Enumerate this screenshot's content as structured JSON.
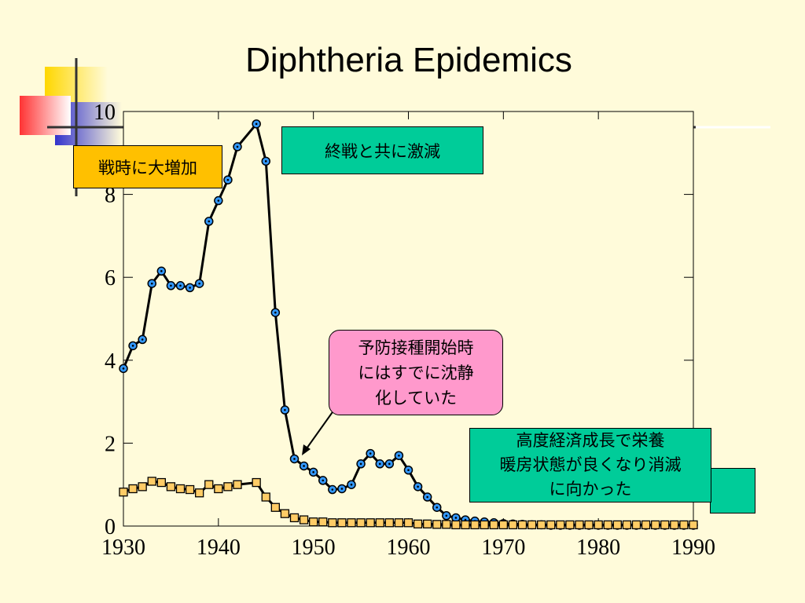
{
  "title": "Diphtheria Epidemics",
  "callouts": {
    "wartime_increase": "戦時に大増加",
    "postwar_decrease": "終戦と共に激減",
    "vaccination": [
      "予防接種開始時",
      "にはすでに沈静",
      "化していた"
    ],
    "growth": [
      "高度経済成長で栄養",
      "暖房状態が良くなり消滅",
      "に向かった"
    ]
  },
  "colors": {
    "background": "#FFFBDA",
    "series1_marker": "#3399FF",
    "series2_marker": "#FFCC66",
    "callout_orange": "#FFC000",
    "callout_green": "#00CC99",
    "callout_pink": "#FF99CC"
  },
  "chart_data": {
    "type": "line",
    "title": "Diphtheria Epidemics",
    "xlim": [
      1930,
      1990
    ],
    "ylim": [
      0,
      10
    ],
    "x_ticks": [
      "1930",
      "1940",
      "1950",
      "1960",
      "1970",
      "1980",
      "1990"
    ],
    "y_ticks": [
      "0",
      "2",
      "4",
      "6",
      "8",
      "10"
    ],
    "grid": false,
    "series": [
      {
        "marker": "circle",
        "x": [
          1930,
          1931,
          1932,
          1933,
          1934,
          1935,
          1936,
          1937,
          1938,
          1939,
          1940,
          1941,
          1942,
          1944,
          1945,
          1946,
          1947,
          1948,
          1949,
          1950,
          1951,
          1952,
          1953,
          1954,
          1955,
          1956,
          1957,
          1958,
          1959,
          1960,
          1961,
          1962,
          1963,
          1964,
          1965,
          1966,
          1967,
          1968,
          1969,
          1970,
          1971,
          1972,
          1973,
          1974,
          1975,
          1976,
          1977,
          1978,
          1979,
          1980,
          1981,
          1982,
          1983,
          1984,
          1985,
          1986,
          1987,
          1988,
          1989,
          1990
        ],
        "y": [
          3.8,
          4.35,
          4.5,
          5.85,
          6.15,
          5.8,
          5.8,
          5.75,
          5.85,
          7.35,
          7.85,
          8.35,
          9.15,
          9.7,
          8.8,
          5.15,
          2.8,
          1.62,
          1.45,
          1.3,
          1.1,
          0.88,
          0.9,
          1.0,
          1.5,
          1.75,
          1.5,
          1.5,
          1.7,
          1.35,
          0.95,
          0.7,
          0.45,
          0.25,
          0.2,
          0.15,
          0.12,
          0.1,
          0.08,
          0.06,
          0.05,
          0.04,
          0.03,
          0.03,
          0.02,
          0.02,
          0.02,
          0.02,
          0.02,
          0.02,
          0.02,
          0.02,
          0.02,
          0.02,
          0.02,
          0.02,
          0.02,
          0.02,
          0.02,
          0.02
        ]
      },
      {
        "marker": "square",
        "x": [
          1930,
          1931,
          1932,
          1933,
          1934,
          1935,
          1936,
          1937,
          1938,
          1939,
          1940,
          1941,
          1942,
          1944,
          1945,
          1946,
          1947,
          1948,
          1949,
          1950,
          1951,
          1952,
          1953,
          1954,
          1955,
          1956,
          1957,
          1958,
          1959,
          1960,
          1961,
          1962,
          1963,
          1964,
          1965,
          1966,
          1967,
          1968,
          1969,
          1970,
          1971,
          1972,
          1973,
          1974,
          1975,
          1976,
          1977,
          1978,
          1979,
          1980,
          1981,
          1982,
          1983,
          1984,
          1985,
          1986,
          1987,
          1988,
          1989,
          1990
        ],
        "y": [
          0.82,
          0.9,
          0.95,
          1.08,
          1.05,
          0.95,
          0.9,
          0.88,
          0.8,
          1.0,
          0.9,
          0.95,
          1.0,
          1.05,
          0.7,
          0.45,
          0.3,
          0.2,
          0.15,
          0.1,
          0.1,
          0.08,
          0.08,
          0.08,
          0.08,
          0.08,
          0.08,
          0.08,
          0.08,
          0.08,
          0.05,
          0.05,
          0.04,
          0.04,
          0.03,
          0.03,
          0.03,
          0.03,
          0.03,
          0.03,
          0.03,
          0.03,
          0.03,
          0.03,
          0.03,
          0.03,
          0.03,
          0.03,
          0.03,
          0.03,
          0.03,
          0.03,
          0.03,
          0.03,
          0.03,
          0.03,
          0.03,
          0.03,
          0.03,
          0.03
        ]
      }
    ]
  }
}
